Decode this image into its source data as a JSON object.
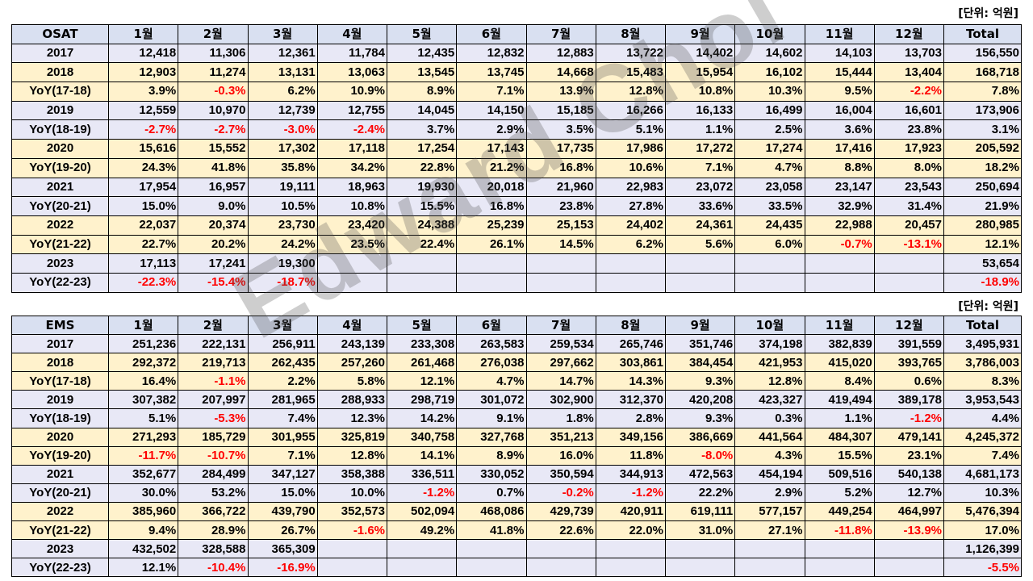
{
  "unit_label": "[단위: 억원]",
  "watermark": "Edward Choi",
  "osat": {
    "header": [
      "OSAT",
      "1월",
      "2월",
      "3월",
      "4월",
      "5월",
      "6월",
      "7월",
      "8월",
      "9월",
      "10월",
      "11월",
      "12월",
      "Total"
    ],
    "rows": [
      {
        "style": "lav",
        "cells": [
          "2017",
          "12,418",
          "11,306",
          "12,361",
          "11,784",
          "12,435",
          "12,832",
          "12,883",
          "13,722",
          "14,402",
          "14,602",
          "14,103",
          "13,703",
          "156,550"
        ]
      },
      {
        "style": "yel",
        "cells": [
          "2018",
          "12,903",
          "11,274",
          "13,131",
          "13,063",
          "13,545",
          "13,745",
          "14,668",
          "15,483",
          "15,954",
          "16,102",
          "15,444",
          "13,404",
          "168,718"
        ]
      },
      {
        "style": "yel",
        "cells": [
          "YoY(17-18)",
          "3.9%",
          "-0.3%",
          "6.2%",
          "10.9%",
          "8.9%",
          "7.1%",
          "13.9%",
          "12.8%",
          "10.8%",
          "10.3%",
          "9.5%",
          "-2.2%",
          "7.8%"
        ]
      },
      {
        "style": "lav",
        "cells": [
          "2019",
          "12,559",
          "10,970",
          "12,739",
          "12,755",
          "14,045",
          "14,150",
          "15,185",
          "16,266",
          "16,133",
          "16,499",
          "16,004",
          "16,601",
          "173,906"
        ]
      },
      {
        "style": "lav",
        "cells": [
          "YoY(18-19)",
          "-2.7%",
          "-2.7%",
          "-3.0%",
          "-2.4%",
          "3.7%",
          "2.9%",
          "3.5%",
          "5.1%",
          "1.1%",
          "2.5%",
          "3.6%",
          "23.8%",
          "3.1%"
        ]
      },
      {
        "style": "yel",
        "cells": [
          "2020",
          "15,616",
          "15,552",
          "17,302",
          "17,118",
          "17,254",
          "17,143",
          "17,735",
          "17,986",
          "17,272",
          "17,274",
          "17,416",
          "17,923",
          "205,592"
        ]
      },
      {
        "style": "yel",
        "cells": [
          "YoY(19-20)",
          "24.3%",
          "41.8%",
          "35.8%",
          "34.2%",
          "22.8%",
          "21.2%",
          "16.8%",
          "10.6%",
          "7.1%",
          "4.7%",
          "8.8%",
          "8.0%",
          "18.2%"
        ]
      },
      {
        "style": "lav",
        "cells": [
          "2021",
          "17,954",
          "16,957",
          "19,111",
          "18,963",
          "19,930",
          "20,018",
          "21,960",
          "22,983",
          "23,072",
          "23,058",
          "23,147",
          "23,543",
          "250,694"
        ]
      },
      {
        "style": "lav",
        "cells": [
          "YoY(20-21)",
          "15.0%",
          "9.0%",
          "10.5%",
          "10.8%",
          "15.5%",
          "16.8%",
          "23.8%",
          "27.8%",
          "33.6%",
          "33.5%",
          "32.9%",
          "31.4%",
          "21.9%"
        ]
      },
      {
        "style": "yel",
        "cells": [
          "2022",
          "22,037",
          "20,374",
          "23,730",
          "23,420",
          "24,388",
          "25,239",
          "25,153",
          "24,402",
          "24,361",
          "24,435",
          "22,988",
          "20,457",
          "280,985"
        ]
      },
      {
        "style": "yel",
        "cells": [
          "YoY(21-22)",
          "22.7%",
          "20.2%",
          "24.2%",
          "23.5%",
          "22.4%",
          "26.1%",
          "14.5%",
          "6.2%",
          "5.6%",
          "6.0%",
          "-0.7%",
          "-13.1%",
          "12.1%"
        ]
      },
      {
        "style": "lav",
        "cells": [
          "2023",
          "17,113",
          "17,241",
          "19,300",
          "",
          "",
          "",
          "",
          "",
          "",
          "",
          "",
          "",
          "53,654"
        ]
      },
      {
        "style": "lav",
        "cells": [
          "YoY(22-23)",
          "-22.3%",
          "-15.4%",
          "-18.7%",
          "",
          "",
          "",
          "",
          "",
          "",
          "",
          "",
          "",
          "-18.9%"
        ]
      }
    ]
  },
  "ems": {
    "header": [
      "EMS",
      "1월",
      "2월",
      "3월",
      "4월",
      "5월",
      "6월",
      "7월",
      "8월",
      "9월",
      "10월",
      "11월",
      "12월",
      "Total"
    ],
    "rows": [
      {
        "style": "lav",
        "cells": [
          "2017",
          "251,236",
          "222,131",
          "256,911",
          "243,139",
          "233,308",
          "263,583",
          "259,534",
          "265,746",
          "351,746",
          "374,198",
          "382,839",
          "391,559",
          "3,495,931"
        ]
      },
      {
        "style": "yel",
        "cells": [
          "2018",
          "292,372",
          "219,713",
          "262,435",
          "257,260",
          "261,468",
          "276,038",
          "297,662",
          "303,861",
          "384,454",
          "421,953",
          "415,020",
          "393,765",
          "3,786,003"
        ]
      },
      {
        "style": "yel",
        "cells": [
          "YoY(17-18)",
          "16.4%",
          "-1.1%",
          "2.2%",
          "5.8%",
          "12.1%",
          "4.7%",
          "14.7%",
          "14.3%",
          "9.3%",
          "12.8%",
          "8.4%",
          "0.6%",
          "8.3%"
        ]
      },
      {
        "style": "lav",
        "cells": [
          "2019",
          "307,382",
          "207,997",
          "281,965",
          "288,933",
          "298,719",
          "301,072",
          "302,900",
          "312,370",
          "420,208",
          "423,327",
          "419,494",
          "389,178",
          "3,953,543"
        ]
      },
      {
        "style": "lav",
        "cells": [
          "YoY(18-19)",
          "5.1%",
          "-5.3%",
          "7.4%",
          "12.3%",
          "14.2%",
          "9.1%",
          "1.8%",
          "2.8%",
          "9.3%",
          "0.3%",
          "1.1%",
          "-1.2%",
          "4.4%"
        ]
      },
      {
        "style": "yel",
        "cells": [
          "2020",
          "271,293",
          "185,729",
          "301,955",
          "325,819",
          "340,758",
          "327,768",
          "351,213",
          "349,156",
          "386,669",
          "441,564",
          "484,307",
          "479,141",
          "4,245,372"
        ]
      },
      {
        "style": "yel",
        "cells": [
          "YoY(19-20)",
          "-11.7%",
          "-10.7%",
          "7.1%",
          "12.8%",
          "14.1%",
          "8.9%",
          "16.0%",
          "11.8%",
          "-8.0%",
          "4.3%",
          "15.5%",
          "23.1%",
          "7.4%"
        ]
      },
      {
        "style": "lav",
        "cells": [
          "2021",
          "352,677",
          "284,499",
          "347,127",
          "358,388",
          "336,511",
          "330,052",
          "350,594",
          "344,913",
          "472,563",
          "454,194",
          "509,516",
          "540,138",
          "4,681,173"
        ]
      },
      {
        "style": "lav",
        "cells": [
          "YoY(20-21)",
          "30.0%",
          "53.2%",
          "15.0%",
          "10.0%",
          "-1.2%",
          "0.7%",
          "-0.2%",
          "-1.2%",
          "22.2%",
          "2.9%",
          "5.2%",
          "12.7%",
          "10.3%"
        ]
      },
      {
        "style": "yel",
        "cells": [
          "2022",
          "385,960",
          "366,722",
          "439,790",
          "352,573",
          "502,094",
          "468,086",
          "429,739",
          "420,911",
          "619,111",
          "577,157",
          "449,254",
          "464,997",
          "5,476,394"
        ]
      },
      {
        "style": "yel",
        "cells": [
          "YoY(21-22)",
          "9.4%",
          "28.9%",
          "26.7%",
          "-1.6%",
          "49.2%",
          "41.8%",
          "22.6%",
          "22.0%",
          "31.0%",
          "27.1%",
          "-11.8%",
          "-13.9%",
          "17.0%"
        ]
      },
      {
        "style": "lav",
        "cells": [
          "2023",
          "432,502",
          "328,588",
          "365,309",
          "",
          "",
          "",
          "",
          "",
          "",
          "",
          "",
          "",
          "1,126,399"
        ]
      },
      {
        "style": "lav",
        "cells": [
          "YoY(22-23)",
          "12.1%",
          "-10.4%",
          "-16.9%",
          "",
          "",
          "",
          "",
          "",
          "",
          "",
          "",
          "",
          "-5.5%"
        ]
      }
    ]
  }
}
